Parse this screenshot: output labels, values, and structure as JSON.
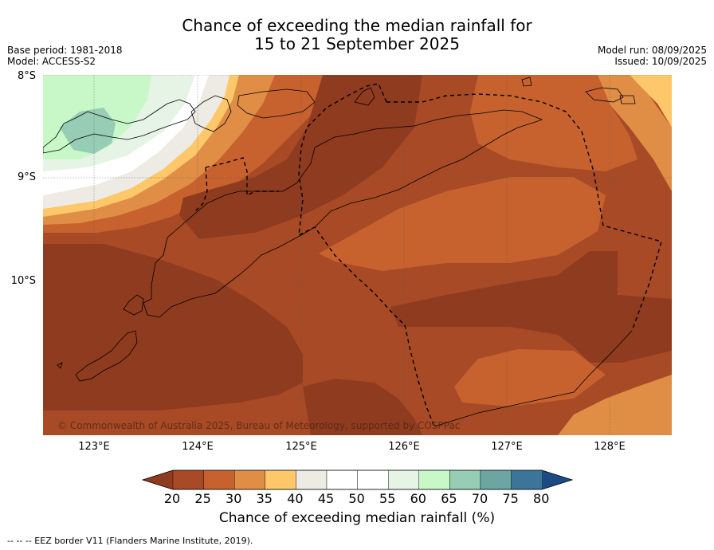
{
  "title_line1": "Chance of exceeding the median rainfall for",
  "title_line2": "15 to 21 September 2025",
  "base_period": "Base period: 1981-2018",
  "model": "Model: ACCESS-S2",
  "model_run": "Model run: 08/09/2025",
  "issued": "Issued: 10/09/2025",
  "lat_labels": [
    "8°S",
    "9°S",
    "10°S"
  ],
  "lon_labels": [
    "123°E",
    "124°E",
    "125°E",
    "126°E",
    "127°E",
    "128°E"
  ],
  "copyright": "© Commonwealth of Australia 2025, Bureau of Meteorology, supported by COSPPac",
  "colorbar": {
    "ticks": [
      "20",
      "25",
      "30",
      "35",
      "40",
      "45",
      "50",
      "55",
      "60",
      "65",
      "70",
      "75",
      "80"
    ],
    "label": "Chance of exceeding median rainfall (%)",
    "colors": [
      "#8f3b1f",
      "#a84a26",
      "#c7622f",
      "#e08e46",
      "#fdc76a",
      "#eeebe5",
      "#ffffff",
      "#ffffff",
      "#e6f4e6",
      "#c8f7c8",
      "#97cdb4",
      "#6ba6a3",
      "#3b7599",
      "#1c4b84"
    ]
  },
  "footnote": "-- -- -- EEZ border V11 (Flanders Marine Institute, 2019)."
}
